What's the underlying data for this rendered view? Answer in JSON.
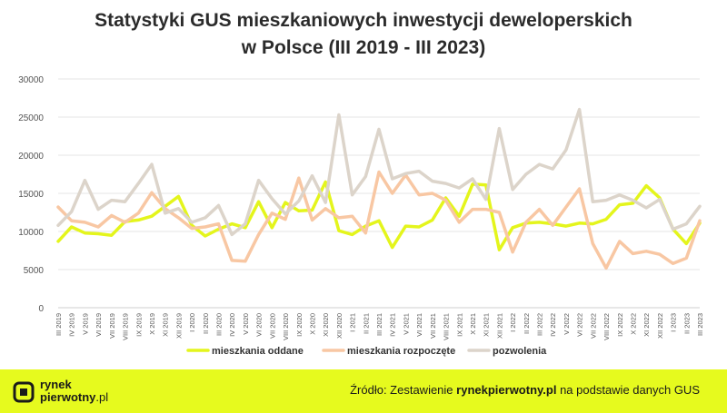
{
  "title_line1": "Statystyki GUS mieszkaniowych inwestycji deweloperskich",
  "title_line2": "w Polsce (III 2019 - III 2023)",
  "footer": {
    "logo_line1": "rynek",
    "logo_line2a": "pierwotny",
    "logo_line2b": ".pl",
    "source_prefix": "Źródło: Zestawienie ",
    "source_site": "rynekpierwotny.pl",
    "source_suffix": " na podstawie danych GUS"
  },
  "chart_data": {
    "type": "line",
    "title": "Statystyki GUS mieszkaniowych inwestycji deweloperskich w Polsce (III 2019 - III 2023)",
    "ylim": [
      0,
      30000
    ],
    "yticks": [
      0,
      5000,
      10000,
      15000,
      20000,
      25000,
      30000
    ],
    "grid": true,
    "legend_position": "bottom",
    "categories": [
      "III 2019",
      "IV 2019",
      "V 2019",
      "VI 2019",
      "VII 2019",
      "VIII 2019",
      "IX 2019",
      "X 2019",
      "XI 2019",
      "XII 2019",
      "I 2020",
      "II 2020",
      "III 2020",
      "IV 2020",
      "V 2020",
      "VI 2020",
      "VII 2020",
      "VIII 2020",
      "IX 2020",
      "X 2020",
      "XI 2020",
      "XII 2020",
      "I 2021",
      "II 2021",
      "III 2021",
      "IV 2021",
      "V 2021",
      "VI 2021",
      "VII 2021",
      "VIII 2021",
      "IX 2021",
      "X 2021",
      "XI 2021",
      "XII 2021",
      "I 2022",
      "II 2022",
      "III 2022",
      "IV 2022",
      "V 2022",
      "VI 2022",
      "VII 2022",
      "VIII 2022",
      "IX 2022",
      "X 2022",
      "XI 2022",
      "XII 2022",
      "I 2023",
      "II 2023",
      "III 2023"
    ],
    "series": [
      {
        "name": "mieszkania oddane",
        "color": "#e4f51c",
        "values": [
          8700,
          10600,
          9800,
          9700,
          9500,
          11300,
          11500,
          12000,
          13300,
          14600,
          10800,
          9400,
          10300,
          11000,
          10500,
          13900,
          10500,
          13800,
          12700,
          12800,
          16500,
          10100,
          9600,
          10700,
          11400,
          7900,
          10700,
          10600,
          11500,
          14400,
          12000,
          16200,
          16100,
          7600,
          10500,
          11100,
          11200,
          11000,
          10700,
          11100,
          11000,
          11600,
          13500,
          13700,
          16000,
          14400,
          10300,
          8400,
          11100
        ]
      },
      {
        "name": "mieszkania rozpoczęte",
        "color": "#f8c7a3",
        "values": [
          13200,
          11400,
          11200,
          10600,
          12100,
          11200,
          12400,
          15100,
          13000,
          11800,
          10400,
          10600,
          11000,
          6200,
          6100,
          9600,
          12400,
          11600,
          17000,
          11500,
          13000,
          11800,
          12000,
          9800,
          17800,
          15000,
          17400,
          14800,
          15000,
          14100,
          11200,
          12900,
          12900,
          12500,
          7300,
          11200,
          12900,
          10800,
          13200,
          15600,
          8400,
          5200,
          8700,
          7100,
          7400,
          7000,
          5800,
          6500,
          11400
        ]
      },
      {
        "name": "pozwolenia",
        "color": "#dcd4ca",
        "values": [
          10800,
          12600,
          16700,
          12900,
          14100,
          13900,
          16300,
          18800,
          12400,
          13000,
          11200,
          11800,
          13400,
          9600,
          11000,
          16700,
          14300,
          12300,
          14000,
          17300,
          13800,
          25300,
          14800,
          17200,
          23400,
          16900,
          17600,
          17900,
          16600,
          16300,
          15700,
          16900,
          14200,
          23500,
          15500,
          17500,
          18800,
          18200,
          20700,
          26000,
          13900,
          14100,
          14800,
          14100,
          13100,
          14200,
          10300,
          11000,
          13300
        ]
      }
    ]
  }
}
